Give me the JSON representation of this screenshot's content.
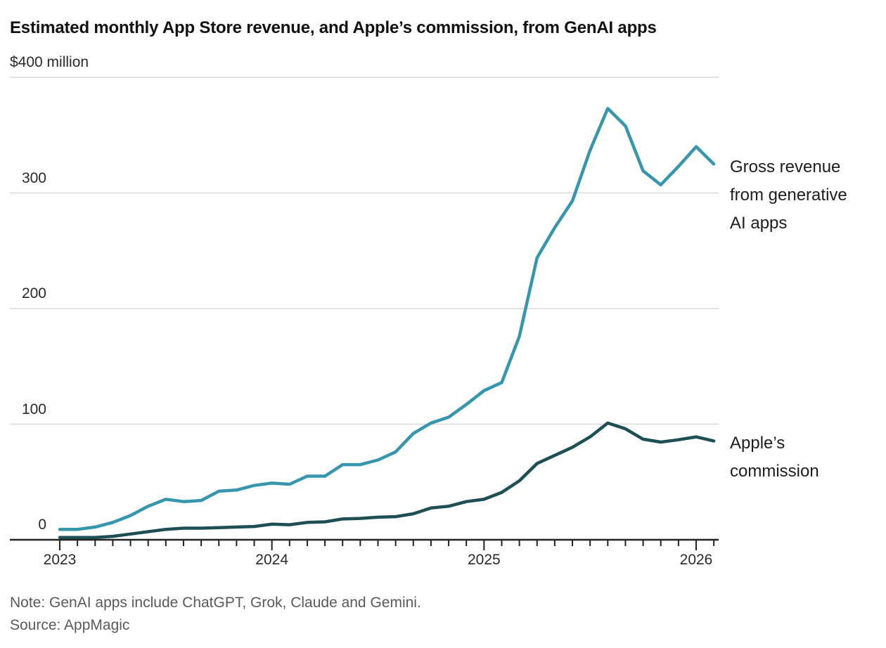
{
  "title": "Estimated monthly App Store revenue, and Apple’s commission, from GenAI apps",
  "y_axis": {
    "unit_label": "$400 million",
    "ticks": [
      {
        "label": "$400 million",
        "value": 400
      },
      {
        "label": "300",
        "value": 300
      },
      {
        "label": "200",
        "value": 200
      },
      {
        "label": "100",
        "value": 100
      },
      {
        "label": "0",
        "value": 0
      }
    ]
  },
  "x_axis": {
    "years": [
      {
        "label": "2023"
      },
      {
        "label": "2024"
      },
      {
        "label": "2025"
      },
      {
        "label": "2026"
      }
    ]
  },
  "labels": {
    "gross": {
      "lines": [
        "Gross revenue",
        "from generative",
        "AI apps"
      ]
    },
    "commission": {
      "lines": [
        "Apple’s",
        "commission"
      ]
    }
  },
  "note": "Note: GenAI apps include ChatGPT, Grok, Claude and Gemini.",
  "source": "Source: AppMagic",
  "colors": {
    "gross_line": "#3596ad",
    "commission_line": "#1d4f55",
    "gridline": "#d9d9d9",
    "axis": "#222222"
  },
  "chart_data": {
    "type": "line",
    "title": "Estimated monthly App Store revenue, and Apple’s commission, from GenAI apps",
    "unit": "US$ million per month",
    "x": [
      "2023-01",
      "2023-02",
      "2023-03",
      "2023-04",
      "2023-05",
      "2023-06",
      "2023-07",
      "2023-08",
      "2023-09",
      "2023-10",
      "2023-11",
      "2023-12",
      "2024-01",
      "2024-02",
      "2024-03",
      "2024-04",
      "2024-05",
      "2024-06",
      "2024-07",
      "2024-08",
      "2024-09",
      "2024-10",
      "2024-11",
      "2024-12",
      "2025-01",
      "2025-02",
      "2025-03",
      "2025-04",
      "2025-05",
      "2025-06",
      "2025-07",
      "2025-08",
      "2025-09",
      "2025-10",
      "2025-11",
      "2025-12",
      "2026-01",
      "2026-02"
    ],
    "series": [
      {
        "name": "Gross revenue from generative AI apps",
        "values": [
          9,
          9,
          11,
          15,
          21,
          29,
          35,
          33,
          34,
          42,
          43,
          47,
          49,
          48,
          55,
          55,
          65,
          65,
          69,
          76,
          92,
          101,
          106,
          117,
          129,
          136,
          176,
          244,
          270,
          293,
          337,
          373,
          358,
          319,
          307,
          323,
          340,
          325
        ]
      },
      {
        "name": "Apple’s commission",
        "values": [
          2,
          2,
          2,
          3,
          5,
          7,
          9,
          10,
          10,
          10.5,
          11,
          11.5,
          13.5,
          13,
          15,
          15.5,
          18,
          18.5,
          19.5,
          20,
          22.5,
          27.5,
          29,
          33,
          35,
          41,
          51,
          66,
          73,
          80,
          89,
          101,
          96,
          87,
          84.5,
          86.5,
          89,
          85.5
        ]
      }
    ],
    "xlabel": "",
    "ylabel": "$ million",
    "ylim": [
      0,
      400
    ],
    "x_tick_labels": [
      "2023",
      "2024",
      "2025",
      "2026"
    ],
    "y_tick_labels": [
      "$400 million",
      "300",
      "200",
      "100",
      "0"
    ],
    "grid": "horizontal",
    "legend_position": "right-annotations"
  }
}
